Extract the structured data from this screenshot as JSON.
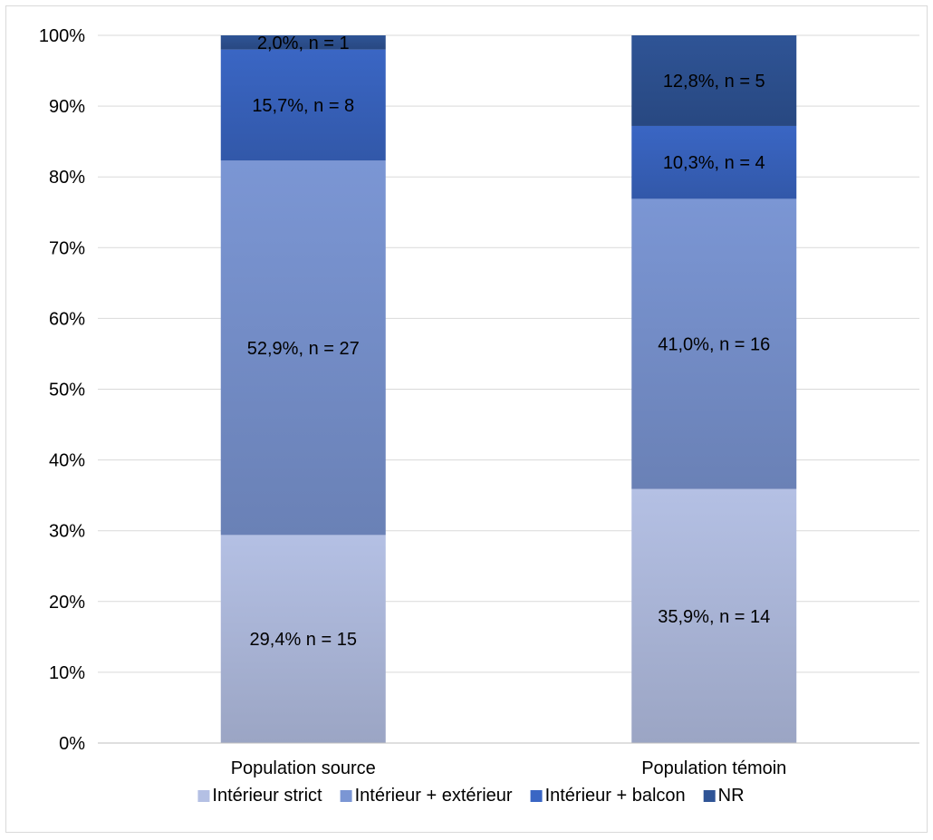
{
  "chart_data": {
    "type": "bar",
    "stacked": true,
    "percent_stacked": true,
    "categories": [
      "Population source",
      "Population témoin"
    ],
    "ylim": [
      0,
      100
    ],
    "y_ticks": [
      "0%",
      "10%",
      "20%",
      "30%",
      "40%",
      "50%",
      "60%",
      "70%",
      "80%",
      "90%",
      "100%"
    ],
    "grid": true,
    "legend_position": "bottom",
    "series": [
      {
        "name": "Intérieur strict",
        "values": [
          29.4,
          35.9
        ],
        "labels": [
          "29,4% n = 15",
          "35,9%, n = 14"
        ],
        "color": "#b4c0e4"
      },
      {
        "name": "Intérieur + extérieur",
        "values": [
          52.9,
          41.0
        ],
        "labels": [
          "52,9%, n = 27",
          "41,0%, n = 16"
        ],
        "color": "#7b96d4"
      },
      {
        "name": "Intérieur + balcon",
        "values": [
          15.7,
          10.3
        ],
        "labels": [
          "15,7%, n = 8",
          "10,3%, n = 4"
        ],
        "color": "#3a66c4"
      },
      {
        "name": "NR",
        "values": [
          2.0,
          12.8
        ],
        "labels": [
          "2,0%, n = 1",
          "12,8%, n = 5"
        ],
        "color": "#2f5496"
      }
    ]
  }
}
